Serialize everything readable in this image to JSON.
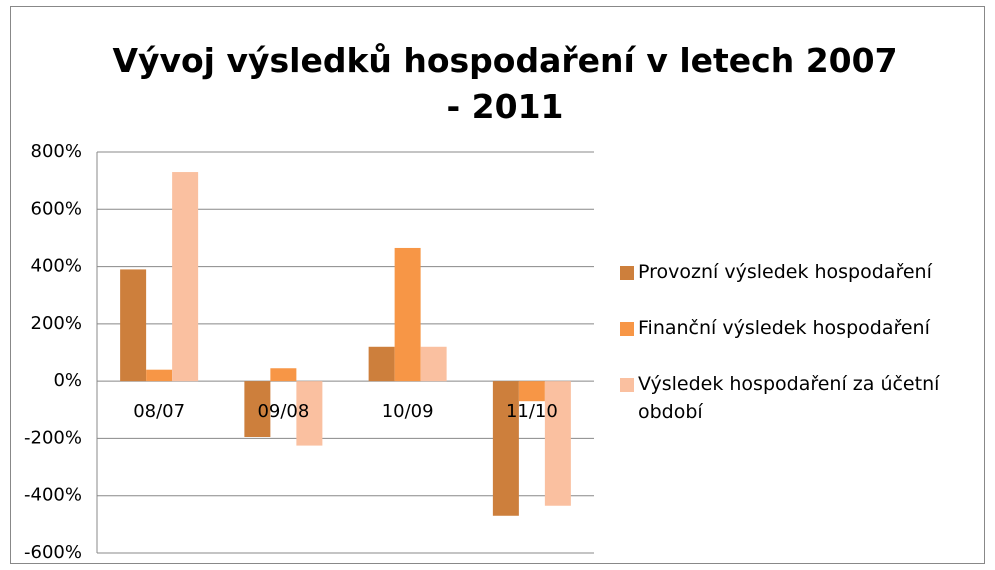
{
  "chart_data": {
    "type": "bar",
    "title": "Vývoj výsledků hospodaření v letech 2007 - 2011",
    "categories": [
      "08/07",
      "09/08",
      "10/09",
      "11/10"
    ],
    "series": [
      {
        "name": "Provozní výsledek hospodaření",
        "color": "#cd7f3c",
        "values": [
          390,
          -195,
          120,
          -470
        ]
      },
      {
        "name": "Finanční výsledek hospodaření",
        "color": "#f79646",
        "values": [
          40,
          45,
          465,
          -70
        ]
      },
      {
        "name": "Výsledek hospodaření za účetní období",
        "color": "#fac0a0",
        "values": [
          730,
          -225,
          120,
          -435
        ]
      }
    ],
    "ylim": [
      -600,
      800
    ],
    "yticks": [
      {
        "value": -600,
        "label": "-600%"
      },
      {
        "value": -400,
        "label": "-400%"
      },
      {
        "value": -200,
        "label": "-200%"
      },
      {
        "value": 0,
        "label": "0%"
      },
      {
        "value": 200,
        "label": "200%"
      },
      {
        "value": 400,
        "label": "400%"
      },
      {
        "value": 600,
        "label": "600%"
      },
      {
        "value": 800,
        "label": "800%"
      }
    ],
    "grid": true,
    "legend": "right"
  }
}
